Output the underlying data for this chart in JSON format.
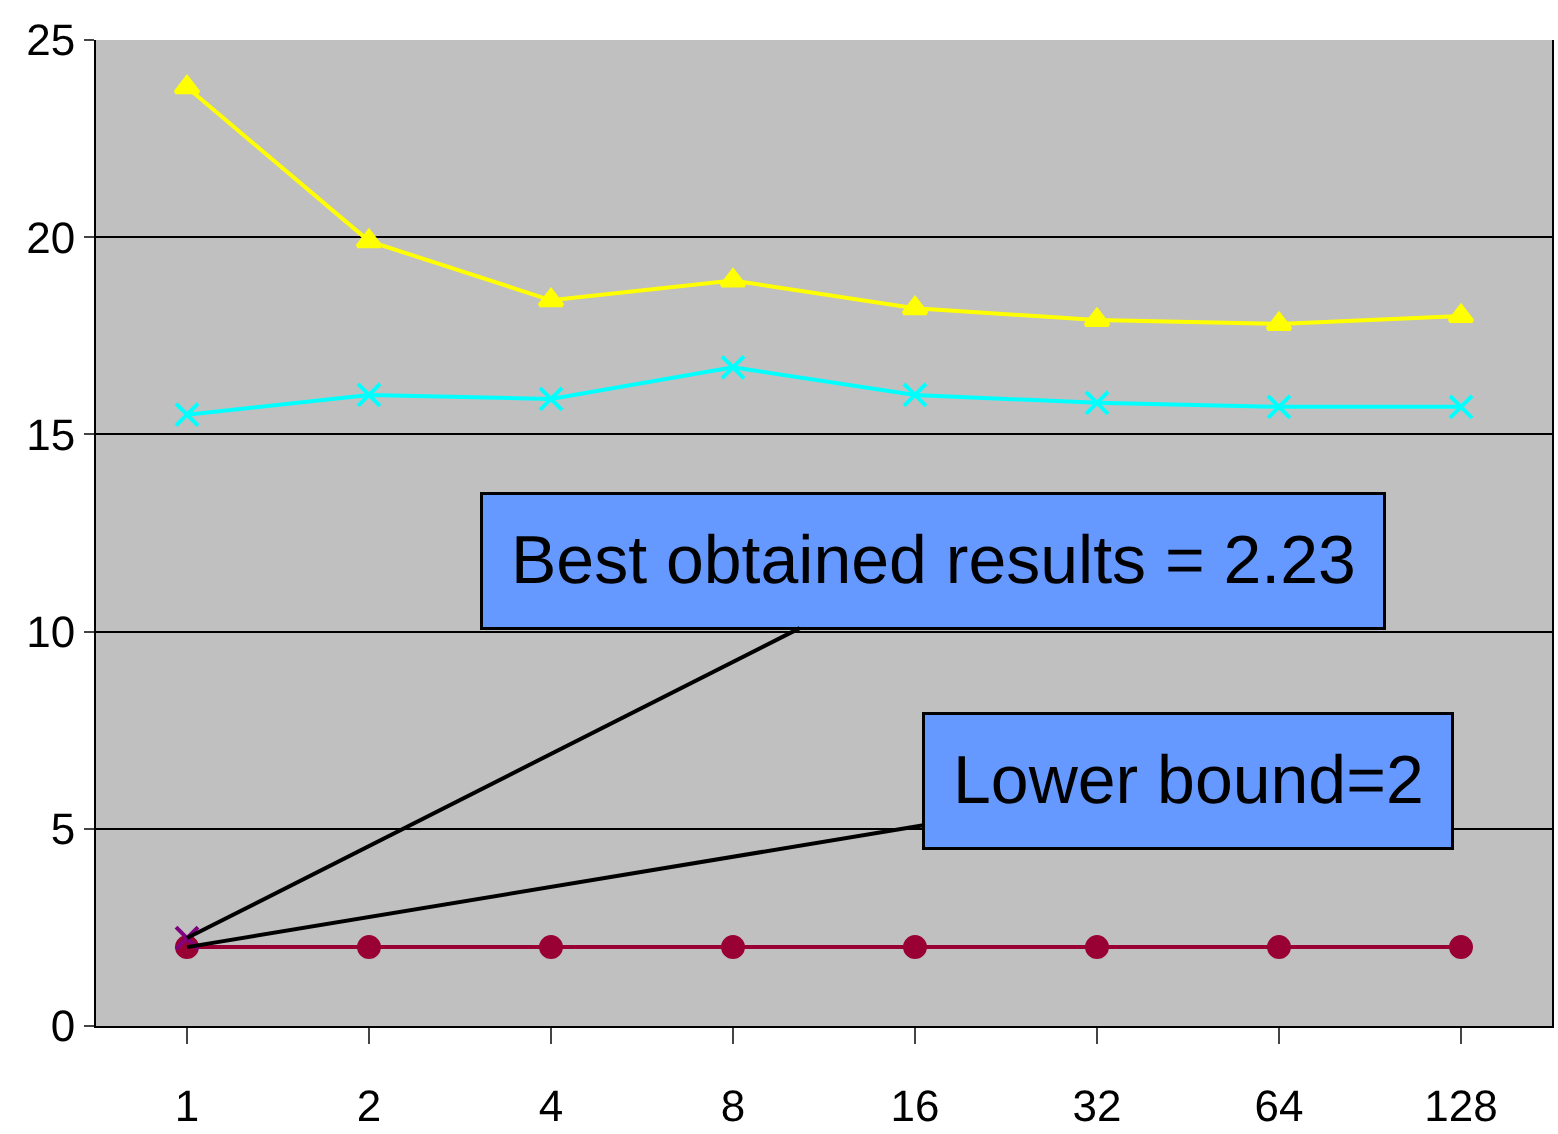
{
  "chart_data": {
    "type": "line",
    "categories": [
      "1",
      "2",
      "4",
      "8",
      "16",
      "32",
      "64",
      "128"
    ],
    "series": [
      {
        "color": "#ffff00",
        "marker": "triangle",
        "values": [
          23.8,
          19.9,
          18.4,
          18.9,
          18.2,
          17.9,
          17.8,
          18.0
        ]
      },
      {
        "color": "#00ffff",
        "marker": "cross",
        "values": [
          15.5,
          16.0,
          15.9,
          16.7,
          16.0,
          15.8,
          15.7,
          15.7
        ]
      },
      {
        "color": "#990033",
        "marker": "circle",
        "values": [
          2,
          2,
          2,
          2,
          2,
          2,
          2,
          2
        ]
      },
      {
        "color": "#800080",
        "marker": "cross",
        "values": [
          2.23,
          null,
          null,
          null,
          null,
          null,
          null,
          null
        ]
      }
    ],
    "ylim": [
      0,
      25
    ],
    "yticks": [
      0,
      5,
      10,
      15,
      20,
      25
    ],
    "grid": "y",
    "annotations": [
      {
        "text": "Best obtained results = 2.23",
        "x": "1",
        "y": 2.23
      },
      {
        "text": "Lower bound=2",
        "x": "1",
        "y": 2
      }
    ]
  }
}
